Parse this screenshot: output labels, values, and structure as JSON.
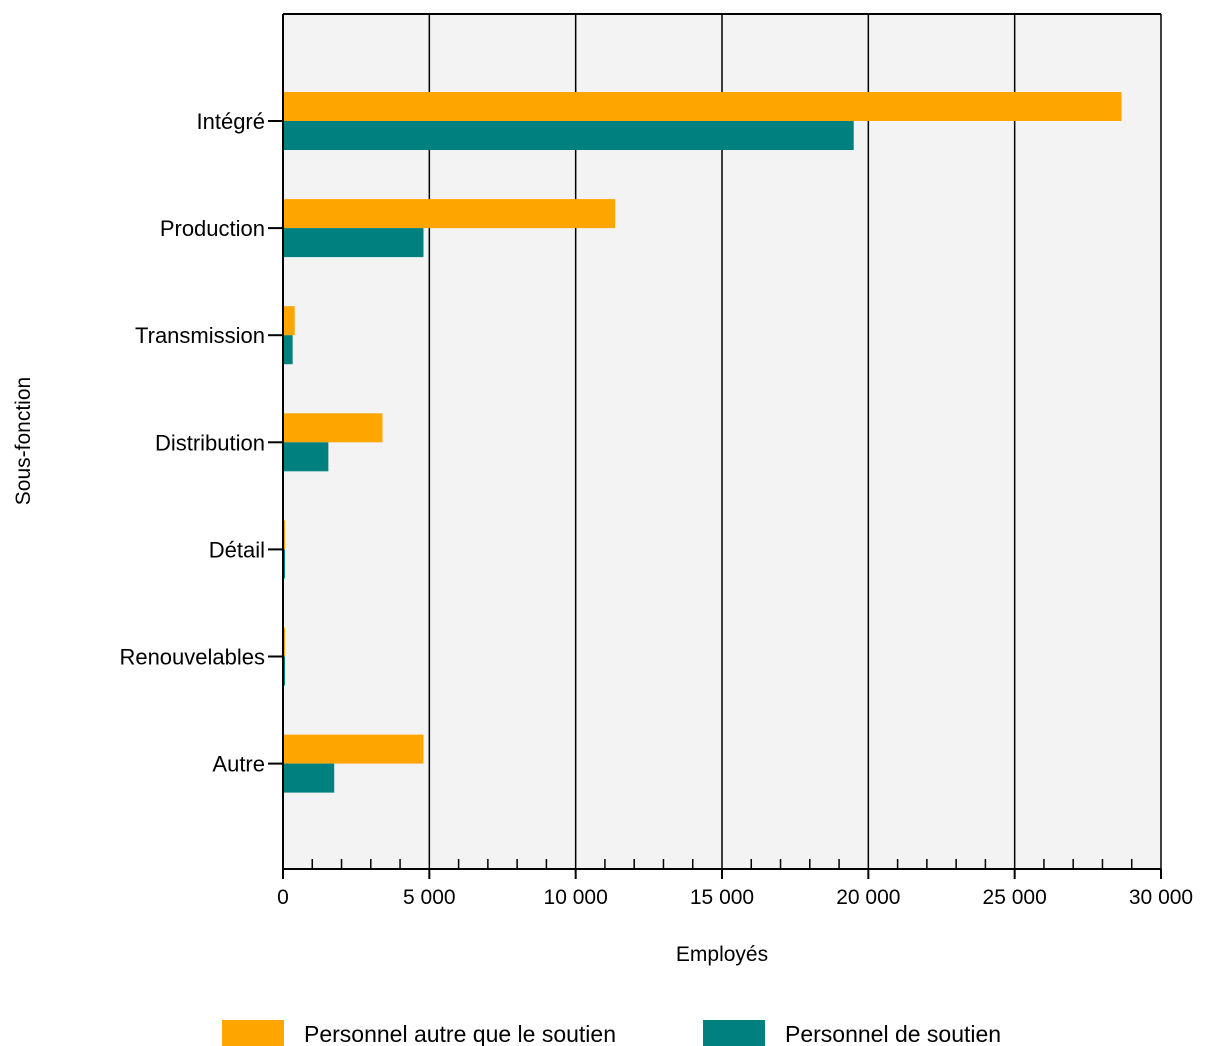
{
  "chart_data": {
    "type": "bar",
    "orientation": "horizontal",
    "categories": [
      "Intégré",
      "Production",
      "Transmission",
      "Distribution",
      "Détail",
      "Renouvelables",
      "Autre"
    ],
    "series": [
      {
        "name": "Personnel autre que le soutien",
        "color": "#FFA500",
        "values": [
          28650,
          11350,
          400,
          3400,
          40,
          40,
          4800
        ]
      },
      {
        "name": "Personnel de soutien",
        "color": "#00807F",
        "values": [
          19500,
          4800,
          330,
          1550,
          40,
          40,
          1750
        ]
      }
    ],
    "xlabel": "Employés",
    "ylabel": "Sous-fonction",
    "xlim": [
      0,
      30000
    ],
    "x_ticks": [
      0,
      5000,
      10000,
      15000,
      20000,
      25000,
      30000
    ],
    "x_tick_labels": [
      "0",
      "5 000",
      "10 000",
      "15 000",
      "20 000",
      "25 000",
      "30 000"
    ],
    "grid": "vertical major lines",
    "plot_background": "#F3F3F3",
    "legend_position": "bottom"
  }
}
